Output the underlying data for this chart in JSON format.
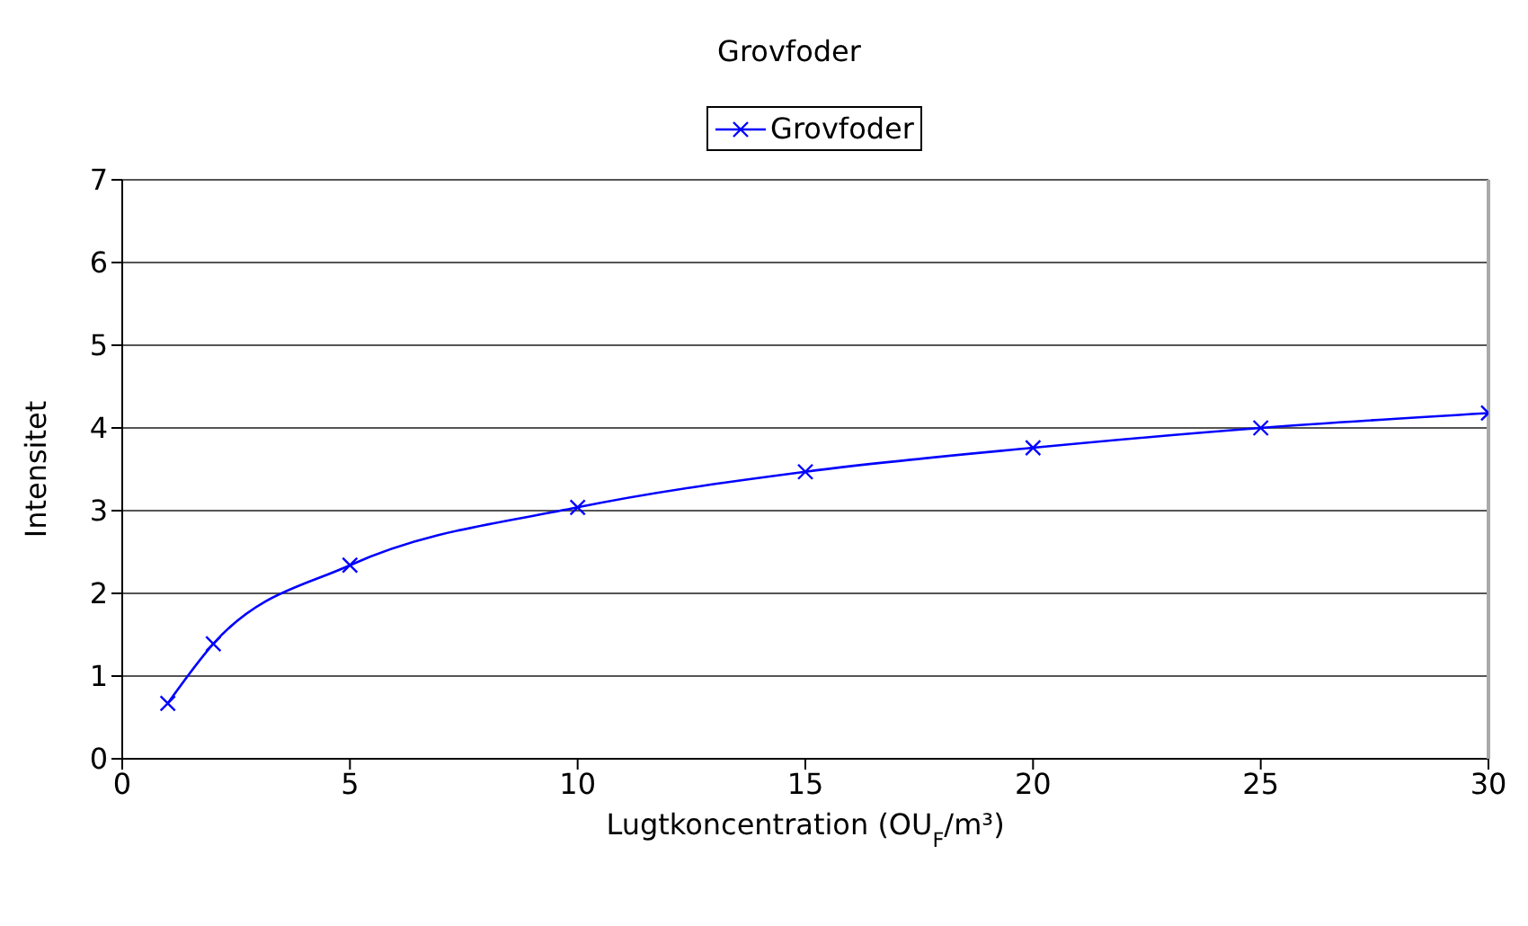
{
  "chart_data": {
    "type": "line",
    "title": "Grovfoder",
    "xlabel": "Lugtkoncentration (OU$_{F}$/m³)",
    "ylabel": "Intensitet",
    "x": [
      1,
      2,
      5,
      10,
      15,
      20,
      25,
      30
    ],
    "series": [
      {
        "name": "Grovfoder",
        "color": "#0000ff",
        "values": [
          0.67,
          1.39,
          2.34,
          3.04,
          3.47,
          3.76,
          4.0,
          4.18
        ]
      }
    ],
    "xlim": [
      0,
      30
    ],
    "xticks": [
      0,
      5,
      10,
      15,
      20,
      25,
      30
    ],
    "ylim": [
      0,
      7
    ],
    "yticks": [
      0,
      1,
      2,
      3,
      4,
      5,
      6,
      7
    ],
    "grid": "y",
    "legend": "top",
    "marker": "cross",
    "line_style": "solid"
  }
}
